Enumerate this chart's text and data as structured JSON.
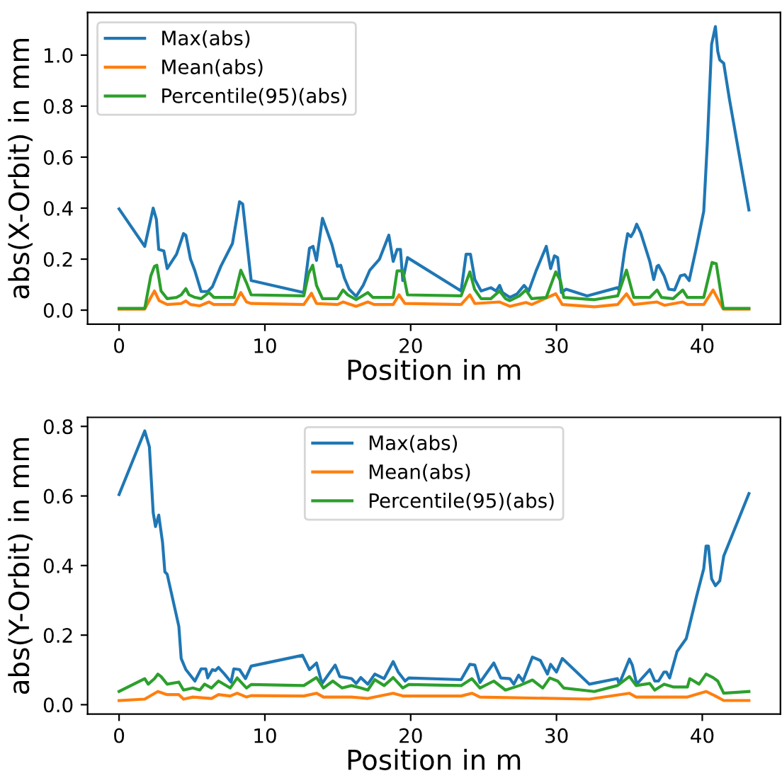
{
  "chart_data": [
    {
      "type": "line",
      "xlabel": "Position in m",
      "ylabel": "abs(X-Orbit) in mm",
      "xlim": [
        -2.16,
        45.36
      ],
      "ylim": [
        -0.055,
        1.167
      ],
      "xticks": [
        0,
        10,
        20,
        30,
        40
      ],
      "yticks": [
        {
          "value": 0,
          "label": "0.0"
        },
        {
          "value": 0.2,
          "label": "0.2"
        },
        {
          "value": 0.4,
          "label": "0.4"
        },
        {
          "value": 0.6,
          "label": "0.6"
        },
        {
          "value": 0.8,
          "label": "0.8"
        },
        {
          "value": 1.0,
          "label": "1.0"
        }
      ],
      "legend": "top left",
      "grid": false,
      "series": [
        {
          "name": "Max(abs)",
          "color": "#1f77b4",
          "x": [
            0,
            1.76,
            2.34,
            2.56,
            2.72,
            3.07,
            3.3,
            3.94,
            4.42,
            4.58,
            4.9,
            5.2,
            5.63,
            6.08,
            6.4,
            6.98,
            7.78,
            8.26,
            8.48,
            9.06,
            12.67,
            13.06,
            13.3,
            13.54,
            13.95,
            14.6,
            14.98,
            15.2,
            15.46,
            15.78,
            16.26,
            16.74,
            17.2,
            17.86,
            18.5,
            18.8,
            19.07,
            19.3,
            19.46,
            19.78,
            23.46,
            23.8,
            24.1,
            24.4,
            24.83,
            25.5,
            25.86,
            26.1,
            26.3,
            26.8,
            27.3,
            27.78,
            28.1,
            28.6,
            29.3,
            29.6,
            29.86,
            30.08,
            30.34,
            30.66,
            32.1,
            34.18,
            34.3,
            34.66,
            34.88,
            35.1,
            35.3,
            35.5,
            35.78,
            36.4,
            36.67,
            36.9,
            37.0,
            37.38,
            37.7,
            38.1,
            38.5,
            38.8,
            39.1,
            39.6,
            40.1,
            40.35,
            40.64,
            40.9,
            41.06,
            41.2,
            41.47,
            41.86,
            43.2
          ],
          "values": [
            0.397,
            0.25,
            0.4,
            0.356,
            0.238,
            0.232,
            0.163,
            0.219,
            0.3,
            0.294,
            0.2,
            0.154,
            0.073,
            0.073,
            0.092,
            0.172,
            0.262,
            0.425,
            0.416,
            0.116,
            0.069,
            0.243,
            0.25,
            0.195,
            0.36,
            0.257,
            0.172,
            0.176,
            0.125,
            0.082,
            0.054,
            0.097,
            0.157,
            0.2,
            0.294,
            0.191,
            0.238,
            0.238,
            0.116,
            0.206,
            0.075,
            0.219,
            0.219,
            0.12,
            0.075,
            0.088,
            0.075,
            0.097,
            0.069,
            0.05,
            0.064,
            0.097,
            0.075,
            0.154,
            0.25,
            0.163,
            0.213,
            0.206,
            0.069,
            0.082,
            0.056,
            0.088,
            0.079,
            0.228,
            0.3,
            0.288,
            0.307,
            0.337,
            0.303,
            0.191,
            0.12,
            0.172,
            0.176,
            0.135,
            0.082,
            0.079,
            0.135,
            0.139,
            0.116,
            0.247,
            0.388,
            0.66,
            1.043,
            1.112,
            1.015,
            0.981,
            0.968,
            0.828,
            0.393
          ]
        },
        {
          "name": "Mean(abs)",
          "color": "#ff7f0e",
          "x": [
            0,
            1.76,
            2.18,
            2.43,
            2.75,
            3.3,
            4.26,
            4.58,
            4.9,
            5.54,
            6.17,
            6.5,
            7.9,
            8.35,
            8.74,
            9.06,
            12.67,
            13.2,
            13.54,
            14.98,
            15.36,
            16.26,
            17.06,
            17.5,
            18.8,
            19.2,
            19.6,
            23.46,
            24.06,
            24.4,
            26.1,
            26.8,
            27.9,
            28.3,
            29.95,
            30.4,
            32.6,
            34.2,
            34.8,
            35.3,
            36.9,
            37.4,
            38.66,
            38.98,
            40.1,
            40.74,
            41.44,
            43.2
          ],
          "values": [
            0.004,
            0.004,
            0.05,
            0.075,
            0.037,
            0.022,
            0.026,
            0.036,
            0.022,
            0.017,
            0.032,
            0.022,
            0.022,
            0.069,
            0.032,
            0.026,
            0.022,
            0.066,
            0.026,
            0.022,
            0.032,
            0.015,
            0.032,
            0.022,
            0.022,
            0.06,
            0.026,
            0.022,
            0.06,
            0.026,
            0.032,
            0.015,
            0.03,
            0.022,
            0.064,
            0.022,
            0.013,
            0.022,
            0.064,
            0.022,
            0.032,
            0.019,
            0.032,
            0.022,
            0.022,
            0.079,
            0.004,
            0.004
          ]
        },
        {
          "name": "Percentile(95)(abs)",
          "color": "#2ca02c",
          "x": [
            0,
            1.76,
            2.18,
            2.43,
            2.59,
            2.88,
            3.3,
            3.94,
            4.26,
            4.58,
            4.8,
            5.2,
            5.63,
            6.17,
            6.5,
            7.9,
            8.35,
            8.74,
            9.06,
            12.67,
            13.0,
            13.28,
            13.54,
            13.95,
            14.98,
            15.36,
            15.68,
            16.26,
            17.06,
            17.4,
            18.8,
            19.07,
            19.46,
            19.78,
            23.46,
            24.06,
            24.38,
            24.83,
            25.5,
            26.1,
            26.5,
            26.8,
            27.46,
            27.9,
            28.3,
            29.3,
            29.95,
            30.27,
            30.5,
            32.6,
            34.2,
            34.8,
            35.3,
            36.4,
            36.9,
            37.2,
            38.0,
            38.66,
            38.98,
            40.1,
            40.67,
            40.96,
            41.44,
            43.2
          ],
          "values": [
            0.007,
            0.007,
            0.135,
            0.172,
            0.176,
            0.075,
            0.045,
            0.05,
            0.06,
            0.084,
            0.06,
            0.05,
            0.045,
            0.069,
            0.05,
            0.05,
            0.157,
            0.107,
            0.06,
            0.056,
            0.144,
            0.176,
            0.097,
            0.045,
            0.045,
            0.079,
            0.06,
            0.041,
            0.069,
            0.05,
            0.05,
            0.154,
            0.154,
            0.06,
            0.056,
            0.15,
            0.082,
            0.045,
            0.045,
            0.075,
            0.045,
            0.037,
            0.056,
            0.079,
            0.045,
            0.05,
            0.15,
            0.116,
            0.05,
            0.041,
            0.056,
            0.157,
            0.05,
            0.05,
            0.079,
            0.05,
            0.045,
            0.079,
            0.05,
            0.05,
            0.187,
            0.182,
            0.007,
            0.007
          ]
        }
      ]
    },
    {
      "type": "line",
      "xlabel": "Position in m",
      "ylabel": "abs(Y-Orbit) in mm",
      "xlim": [
        -2.16,
        45.36
      ],
      "ylim": [
        -0.027,
        0.826
      ],
      "xticks": [
        0,
        10,
        20,
        30,
        40
      ],
      "yticks": [
        {
          "value": 0,
          "label": "0.0"
        },
        {
          "value": 0.2,
          "label": "0.2"
        },
        {
          "value": 0.4,
          "label": "0.4"
        },
        {
          "value": 0.6,
          "label": "0.6"
        },
        {
          "value": 0.8,
          "label": "0.8"
        }
      ],
      "legend": "top",
      "grid": false,
      "series": [
        {
          "name": "Max(abs)",
          "color": "#1f77b4",
          "x": [
            0,
            1.76,
            2.08,
            2.34,
            2.5,
            2.72,
            2.98,
            3.14,
            3.3,
            4.1,
            4.26,
            4.58,
            5.2,
            5.63,
            5.95,
            6.08,
            6.4,
            6.6,
            6.82,
            7.23,
            7.68,
            7.87,
            8.26,
            8.67,
            9.06,
            12.58,
            13.06,
            13.54,
            13.92,
            14.82,
            15.14,
            15.94,
            16.26,
            16.58,
            17.06,
            17.54,
            18.18,
            18.8,
            19.14,
            19.62,
            19.87,
            23.46,
            24.06,
            24.4,
            24.75,
            25.7,
            26.18,
            26.8,
            27.07,
            27.4,
            27.7,
            28.35,
            28.9,
            29.38,
            29.6,
            30.0,
            30.4,
            32.26,
            34.18,
            34.3,
            35.0,
            35.2,
            35.5,
            36.4,
            36.74,
            37.0,
            37.38,
            37.54,
            37.76,
            38.27,
            38.9,
            39.6,
            40.1,
            40.26,
            40.42,
            40.64,
            40.9,
            41.2,
            41.47,
            43.2
          ],
          "values": [
            0.604,
            0.787,
            0.741,
            0.552,
            0.512,
            0.545,
            0.467,
            0.382,
            0.375,
            0.225,
            0.133,
            0.101,
            0.068,
            0.103,
            0.103,
            0.077,
            0.101,
            0.098,
            0.107,
            0.088,
            0.065,
            0.103,
            0.101,
            0.075,
            0.111,
            0.142,
            0.101,
            0.12,
            0.061,
            0.114,
            0.081,
            0.075,
            0.061,
            0.078,
            0.059,
            0.088,
            0.075,
            0.124,
            0.094,
            0.068,
            0.077,
            0.072,
            0.116,
            0.114,
            0.064,
            0.12,
            0.077,
            0.075,
            0.059,
            0.085,
            0.068,
            0.137,
            0.127,
            0.088,
            0.116,
            0.094,
            0.133,
            0.059,
            0.075,
            0.059,
            0.131,
            0.114,
            0.059,
            0.101,
            0.068,
            0.068,
            0.094,
            0.094,
            0.077,
            0.153,
            0.19,
            0.31,
            0.391,
            0.456,
            0.456,
            0.362,
            0.342,
            0.356,
            0.427,
            0.607
          ]
        },
        {
          "name": "Mean(abs)",
          "color": "#ff7f0e",
          "x": [
            0,
            1.76,
            2.66,
            3.3,
            4.1,
            4.42,
            5.06,
            6.34,
            6.82,
            7.62,
            8.1,
            8.74,
            9.06,
            12.67,
            13.54,
            14.02,
            15.94,
            17.06,
            18.8,
            19.46,
            23.46,
            24.2,
            24.75,
            32.26,
            35.0,
            35.46,
            38.98,
            40.26,
            40.9,
            41.47,
            43.2
          ],
          "values": [
            0.012,
            0.016,
            0.038,
            0.029,
            0.029,
            0.016,
            0.022,
            0.018,
            0.029,
            0.025,
            0.033,
            0.022,
            0.026,
            0.025,
            0.033,
            0.022,
            0.022,
            0.018,
            0.033,
            0.025,
            0.025,
            0.033,
            0.022,
            0.016,
            0.033,
            0.022,
            0.022,
            0.038,
            0.025,
            0.012,
            0.012
          ]
        },
        {
          "name": "Percentile(95)(abs)",
          "color": "#2ca02c",
          "x": [
            0,
            1.76,
            2.0,
            2.43,
            2.66,
            2.88,
            3.3,
            4.1,
            4.42,
            5.06,
            5.54,
            5.86,
            6.34,
            6.82,
            7.62,
            8.1,
            8.74,
            9.06,
            12.67,
            13.54,
            14.02,
            14.66,
            15.3,
            15.94,
            16.58,
            17.06,
            17.54,
            18.18,
            18.8,
            19.46,
            19.87,
            23.46,
            24.2,
            24.75,
            25.7,
            26.5,
            27.46,
            28.35,
            29.06,
            29.54,
            30.08,
            30.5,
            32.6,
            34.18,
            35.0,
            35.46,
            36.4,
            36.74,
            37.38,
            38.0,
            38.98,
            39.14,
            39.78,
            40.26,
            40.74,
            41.06,
            41.47,
            43.2
          ],
          "values": [
            0.038,
            0.075,
            0.059,
            0.075,
            0.088,
            0.081,
            0.059,
            0.065,
            0.042,
            0.048,
            0.042,
            0.059,
            0.048,
            0.068,
            0.048,
            0.077,
            0.048,
            0.058,
            0.055,
            0.078,
            0.048,
            0.068,
            0.048,
            0.055,
            0.048,
            0.042,
            0.072,
            0.055,
            0.078,
            0.048,
            0.058,
            0.055,
            0.075,
            0.048,
            0.068,
            0.042,
            0.055,
            0.071,
            0.048,
            0.077,
            0.068,
            0.048,
            0.038,
            0.055,
            0.081,
            0.055,
            0.061,
            0.042,
            0.059,
            0.051,
            0.051,
            0.075,
            0.059,
            0.088,
            0.078,
            0.068,
            0.033,
            0.038
          ]
        }
      ]
    }
  ]
}
